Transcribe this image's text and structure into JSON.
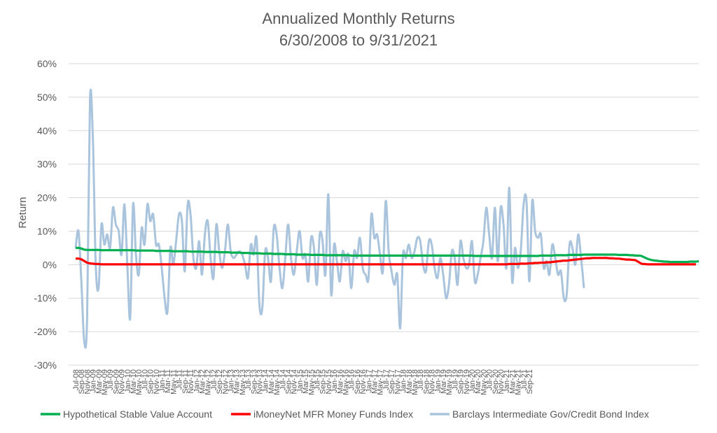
{
  "chart_data": {
    "type": "line",
    "title_lines": [
      "Annualized Monthly Returns",
      "6/30/2008 to 9/31/2021"
    ],
    "xlabel": "",
    "ylabel": "Return",
    "ylim": [
      -0.3,
      0.6
    ],
    "y_ticks": [
      -0.3,
      -0.2,
      -0.1,
      0,
      0.1,
      0.2,
      0.3,
      0.4,
      0.5,
      0.6
    ],
    "y_tick_labels": [
      "-30%",
      "-20%",
      "-10%",
      "0%",
      "10%",
      "20%",
      "30%",
      "40%",
      "50%",
      "60%"
    ],
    "grid": true,
    "legend_position": "bottom",
    "x_start": "2008-07",
    "x_end": "2021-09",
    "x_tick_labels": [
      "Jul-08",
      "Sep-08",
      "Nov-08",
      "Jan-09",
      "Mar-09",
      "May-09",
      "Jul-09",
      "Sep-09",
      "Nov-09",
      "Jan-10",
      "Mar-10",
      "May-10",
      "Jul-10",
      "Sep-10",
      "Nov-10",
      "Jan-11",
      "Mar-11",
      "May-11",
      "Jul-11",
      "Sep-11",
      "Nov-11",
      "Jan-12",
      "Mar-12",
      "May-12",
      "Jul-12",
      "Sep-12",
      "Nov-12",
      "Jan-13",
      "Mar-13",
      "May-13",
      "Jul-13",
      "Sep-13",
      "Nov-13",
      "Jan-14",
      "Mar-14",
      "May-14",
      "Jul-14",
      "Sep-14",
      "Nov-14",
      "Jan-15",
      "Mar-15",
      "May-15",
      "Jul-15",
      "Sep-15",
      "Nov-15",
      "Jan-16",
      "Mar-16",
      "May-16",
      "Jul-16",
      "Sep-16",
      "Nov-16",
      "Jan-17",
      "Mar-17",
      "May-17",
      "Jul-17",
      "Sep-17",
      "Nov-17",
      "Jan-18",
      "Mar-18",
      "May-18",
      "Jul-18",
      "Sep-18",
      "Nov-18",
      "Jan-19",
      "Mar-19",
      "May-19",
      "Jul-19",
      "Sep-19",
      "Nov-19",
      "Jan-20",
      "Mar-20",
      "May-20",
      "Jul-20",
      "Sep-20",
      "Nov-20",
      "Jan-21",
      "Mar-21",
      "May-21",
      "Jul-21",
      "Sep-21"
    ],
    "series": [
      {
        "name": "Hypothetical Stable Value Account",
        "color": "#00b050",
        "values": [
          0.05,
          0.05,
          0.048,
          0.045,
          0.044,
          0.044,
          0.044,
          0.044,
          0.044,
          0.043,
          0.043,
          0.043,
          0.043,
          0.043,
          0.043,
          0.043,
          0.043,
          0.043,
          0.043,
          0.043,
          0.043,
          0.042,
          0.042,
          0.042,
          0.042,
          0.042,
          0.042,
          0.042,
          0.041,
          0.041,
          0.041,
          0.041,
          0.041,
          0.041,
          0.04,
          0.04,
          0.04,
          0.04,
          0.04,
          0.04,
          0.039,
          0.039,
          0.039,
          0.039,
          0.039,
          0.038,
          0.038,
          0.038,
          0.038,
          0.038,
          0.037,
          0.037,
          0.037,
          0.037,
          0.036,
          0.036,
          0.036,
          0.036,
          0.035,
          0.035,
          0.035,
          0.034,
          0.034,
          0.034,
          0.034,
          0.033,
          0.033,
          0.033,
          0.033,
          0.032,
          0.032,
          0.032,
          0.032,
          0.031,
          0.031,
          0.031,
          0.031,
          0.03,
          0.03,
          0.03,
          0.03,
          0.03,
          0.029,
          0.029,
          0.029,
          0.029,
          0.029,
          0.028,
          0.028,
          0.028,
          0.028,
          0.028,
          0.028,
          0.028,
          0.028,
          0.028,
          0.027,
          0.027,
          0.027,
          0.027,
          0.027,
          0.027,
          0.027,
          0.027,
          0.027,
          0.027,
          0.027,
          0.027,
          0.027,
          0.027,
          0.027,
          0.027,
          0.027,
          0.027,
          0.027,
          0.027,
          0.027,
          0.027,
          0.027,
          0.027,
          0.027,
          0.027,
          0.027,
          0.027,
          0.027,
          0.027,
          0.027,
          0.027,
          0.027,
          0.027,
          0.027,
          0.027,
          0.027,
          0.027,
          0.027,
          0.027,
          0.027,
          0.027,
          0.027,
          0.026,
          0.026,
          0.026,
          0.026,
          0.026,
          0.026,
          0.026,
          0.026,
          0.026,
          0.026,
          0.026,
          0.026,
          0.026,
          0.026,
          0.026,
          0.026,
          0.026,
          0.026,
          0.026,
          0.026,
          0.026,
          0.026,
          0.026,
          0.027,
          0.027,
          0.027,
          0.027,
          0.027,
          0.028,
          0.028,
          0.028,
          0.028,
          0.028,
          0.029,
          0.029,
          0.029,
          0.029,
          0.029,
          0.03,
          0.03,
          0.03,
          0.03,
          0.03,
          0.03,
          0.03,
          0.03,
          0.03,
          0.03,
          0.03,
          0.03,
          0.029,
          0.029,
          0.029,
          0.029,
          0.028,
          0.028,
          0.027,
          0.027,
          0.026,
          0.022,
          0.018,
          0.015,
          0.013,
          0.012,
          0.011,
          0.01,
          0.009,
          0.009,
          0.008,
          0.008,
          0.008,
          0.008,
          0.008,
          0.008,
          0.008,
          0.009,
          0.009,
          0.009,
          0.01
        ]
      },
      {
        "name": "iMoneyNet MFR Money Funds Index",
        "color": "#ff0000",
        "values": [
          0.018,
          0.018,
          0.016,
          0.011,
          0.006,
          0.004,
          0.003,
          0.002,
          0.002,
          0.001,
          0.001,
          0.001,
          0.001,
          0.001,
          0.001,
          0.001,
          0.001,
          0.001,
          0.001,
          0.001,
          0.001,
          0.001,
          0.001,
          0.001,
          0.001,
          0.001,
          0.001,
          0.001,
          0.001,
          0.001,
          0.001,
          0.001,
          0.001,
          0.001,
          0.001,
          0.001,
          0.001,
          0.001,
          0.001,
          0.001,
          0.001,
          0.001,
          0.001,
          0.001,
          0.001,
          0.001,
          0.001,
          0.001,
          0.001,
          0.001,
          0.001,
          0.001,
          0.001,
          0.001,
          0.001,
          0.001,
          0.001,
          0.001,
          0.001,
          0.001,
          0.001,
          0.001,
          0.001,
          0.001,
          0.001,
          0.001,
          0.001,
          0.001,
          0.001,
          0.001,
          0.001,
          0.001,
          0.001,
          0.001,
          0.001,
          0.001,
          0.001,
          0.001,
          0.001,
          0.001,
          0.001,
          0.001,
          0.001,
          0.001,
          0.001,
          0.001,
          0.001,
          0.001,
          0.001,
          0.001,
          0.001,
          0.001,
          0.001,
          0.001,
          0.001,
          0.001,
          0.001,
          0.001,
          0.001,
          0.001,
          0.001,
          0.001,
          0.001,
          0.001,
          0.001,
          0.001,
          0.001,
          0.001,
          0.001,
          0.001,
          0.001,
          0.001,
          0.001,
          0.001,
          0.001,
          0.001,
          0.001,
          0.001,
          0.001,
          0.001,
          0.001,
          0.001,
          0.001,
          0.001,
          0.001,
          0.001,
          0.001,
          0.001,
          0.001,
          0.001,
          0.001,
          0.001,
          0.001,
          0.001,
          0.001,
          0.001,
          0.001,
          0.001,
          0.001,
          0.001,
          0.001,
          0.001,
          0.001,
          0.001,
          0.001,
          0.001,
          0.001,
          0.001,
          0.001,
          0.001,
          0.001,
          0.002,
          0.002,
          0.002,
          0.002,
          0.003,
          0.003,
          0.003,
          0.004,
          0.004,
          0.005,
          0.005,
          0.006,
          0.006,
          0.007,
          0.007,
          0.008,
          0.009,
          0.01,
          0.011,
          0.012,
          0.012,
          0.013,
          0.014,
          0.015,
          0.016,
          0.017,
          0.018,
          0.019,
          0.019,
          0.02,
          0.02,
          0.02,
          0.02,
          0.02,
          0.02,
          0.019,
          0.019,
          0.018,
          0.018,
          0.017,
          0.016,
          0.015,
          0.015,
          0.014,
          0.013,
          0.008,
          0.003,
          0.002,
          0.001,
          0.001,
          0.001,
          0.001,
          0.001,
          0.001,
          0.001,
          0.001,
          0.001,
          0.001,
          0.001,
          0.001,
          0.001,
          0.001,
          0.001,
          0.001,
          0.001,
          0.001
        ]
      },
      {
        "name": "Barclays Intermediate Gov/Credit Bond Index",
        "color": "#a9c4dc",
        "values": [
          0.05,
          0.1,
          -0.05,
          -0.23,
          -0.16,
          0.49,
          0.38,
          0.0,
          -0.07,
          0.12,
          0.06,
          0.09,
          0.05,
          0.17,
          0.12,
          0.1,
          0.03,
          0.18,
          0.0,
          -0.16,
          0.18,
          0.03,
          -0.03,
          0.11,
          0.06,
          0.18,
          0.13,
          0.15,
          0.06,
          0.06,
          -0.01,
          -0.1,
          -0.14,
          0.05,
          0.0,
          0.07,
          0.15,
          0.13,
          -0.02,
          0.18,
          0.15,
          0.02,
          -0.01,
          0.07,
          -0.03,
          0.09,
          0.13,
          0.02,
          -0.04,
          0.12,
          0.04,
          -0.01,
          0.04,
          0.12,
          0.04,
          0.02,
          0.03,
          0.04,
          0.03,
          0.0,
          -0.04,
          0.06,
          0.03,
          0.08,
          -0.12,
          -0.13,
          0.04,
          0.02,
          -0.05,
          0.11,
          0.09,
          -0.01,
          -0.07,
          0.02,
          0.12,
          0.02,
          -0.03,
          0.04,
          0.1,
          0.02,
          0.03,
          -0.05,
          0.08,
          0.05,
          -0.06,
          0.09,
          0.07,
          -0.03,
          0.21,
          -0.09,
          0.06,
          0.01,
          -0.05,
          0.04,
          0.01,
          0.03,
          -0.07,
          0.04,
          0.02,
          0.08,
          -0.01,
          -0.03,
          -0.04,
          0.15,
          0.08,
          0.09,
          0.03,
          -0.02,
          0.19,
          0.04,
          -0.02,
          -0.06,
          -0.03,
          -0.19,
          0.03,
          0.02,
          0.06,
          0.02,
          0.04,
          0.08,
          0.07,
          0.0,
          -0.02,
          0.07,
          0.06,
          -0.01,
          -0.04,
          0.02,
          -0.03,
          -0.1,
          -0.06,
          0.04,
          0.02,
          -0.06,
          0.07,
          0.02,
          -0.01,
          0.0,
          0.07,
          -0.05,
          -0.03,
          0.02,
          0.07,
          0.17,
          0.09,
          0.02,
          0.17,
          0.01,
          0.17,
          0.12,
          -0.01,
          0.23,
          -0.05,
          0.05,
          -0.01,
          0.04,
          0.18,
          0.19,
          -0.05,
          0.19,
          0.1,
          0.08,
          0.09,
          -0.01,
          0.01,
          -0.03,
          0.06,
          0.02,
          -0.03,
          -0.02,
          -0.1,
          -0.09,
          0.06,
          0.05,
          0.0,
          0.09,
          0.02,
          -0.07
        ]
      }
    ]
  }
}
